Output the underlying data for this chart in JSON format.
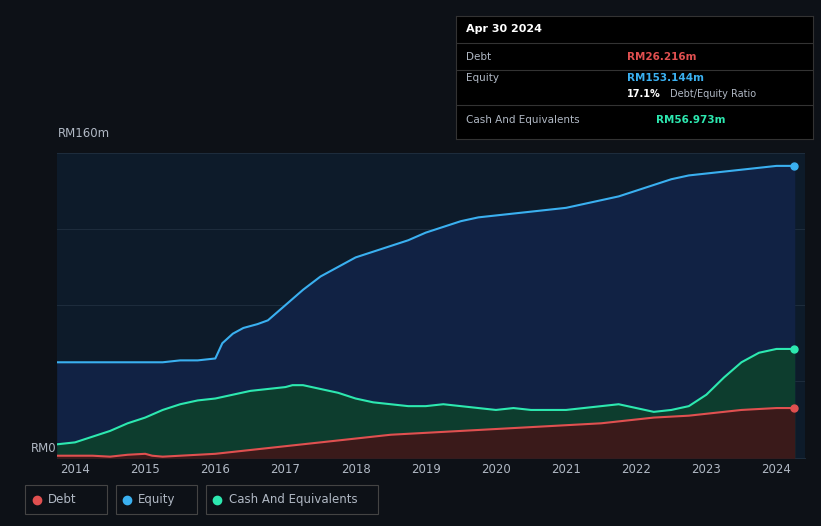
{
  "bg_color": "#0d1117",
  "plot_bg_color": "#0d1b2a",
  "colors": {
    "debt": "#e05050",
    "equity": "#3ab0f0",
    "cash": "#2de8b0",
    "equity_fill": "#112244",
    "cash_fill": "#0d3d2e",
    "debt_fill": "#3a1a1a",
    "grid": "#1e2d3d",
    "text": "#b0b8c4"
  },
  "y_label_top": "RM160m",
  "y_label_bottom": "RM0",
  "x_ticks": [
    "2014",
    "2015",
    "2016",
    "2017",
    "2018",
    "2019",
    "2020",
    "2021",
    "2022",
    "2023",
    "2024"
  ],
  "tooltip": {
    "date": "Apr 30 2024",
    "debt_label": "Debt",
    "debt_value": "RM26.216m",
    "equity_label": "Equity",
    "equity_value": "RM153.144m",
    "ratio_value": "17.1%",
    "ratio_label": "Debt/Equity Ratio",
    "cash_label": "Cash And Equivalents",
    "cash_value": "RM56.973m"
  },
  "equity_data": {
    "x": [
      2013.75,
      2014.0,
      2014.25,
      2014.5,
      2014.75,
      2015.0,
      2015.25,
      2015.5,
      2015.75,
      2016.0,
      2016.1,
      2016.25,
      2016.4,
      2016.6,
      2016.75,
      2017.0,
      2017.25,
      2017.5,
      2017.75,
      2018.0,
      2018.25,
      2018.5,
      2018.75,
      2019.0,
      2019.25,
      2019.5,
      2019.75,
      2020.0,
      2020.25,
      2020.5,
      2020.75,
      2021.0,
      2021.25,
      2021.5,
      2021.75,
      2022.0,
      2022.25,
      2022.5,
      2022.75,
      2023.0,
      2023.25,
      2023.5,
      2023.75,
      2024.0,
      2024.25
    ],
    "y": [
      50,
      50,
      50,
      50,
      50,
      50,
      50,
      51,
      51,
      52,
      60,
      65,
      68,
      70,
      72,
      80,
      88,
      95,
      100,
      105,
      108,
      111,
      114,
      118,
      121,
      124,
      126,
      127,
      128,
      129,
      130,
      131,
      133,
      135,
      137,
      140,
      143,
      146,
      148,
      149,
      150,
      151,
      152,
      153,
      153
    ]
  },
  "cash_data": {
    "x": [
      2013.75,
      2014.0,
      2014.25,
      2014.5,
      2014.75,
      2015.0,
      2015.25,
      2015.5,
      2015.75,
      2016.0,
      2016.25,
      2016.5,
      2016.75,
      2017.0,
      2017.1,
      2017.25,
      2017.5,
      2017.75,
      2018.0,
      2018.25,
      2018.5,
      2018.75,
      2019.0,
      2019.25,
      2019.5,
      2019.75,
      2020.0,
      2020.25,
      2020.5,
      2020.75,
      2021.0,
      2021.25,
      2021.5,
      2021.75,
      2022.0,
      2022.25,
      2022.5,
      2022.75,
      2023.0,
      2023.25,
      2023.5,
      2023.75,
      2024.0,
      2024.25
    ],
    "y": [
      7,
      8,
      11,
      14,
      18,
      21,
      25,
      28,
      30,
      31,
      33,
      35,
      36,
      37,
      38,
      38,
      36,
      34,
      31,
      29,
      28,
      27,
      27,
      28,
      27,
      26,
      25,
      26,
      25,
      25,
      25,
      26,
      27,
      28,
      26,
      24,
      25,
      27,
      33,
      42,
      50,
      55,
      57,
      57
    ]
  },
  "debt_data": {
    "x": [
      2013.75,
      2014.0,
      2014.25,
      2014.5,
      2014.75,
      2015.0,
      2015.1,
      2015.25,
      2015.5,
      2015.75,
      2016.0,
      2016.25,
      2016.5,
      2016.75,
      2017.0,
      2017.25,
      2017.5,
      2017.75,
      2018.0,
      2018.25,
      2018.5,
      2018.75,
      2019.0,
      2019.25,
      2019.5,
      2019.75,
      2020.0,
      2020.25,
      2020.5,
      2020.75,
      2021.0,
      2021.25,
      2021.5,
      2021.75,
      2022.0,
      2022.25,
      2022.5,
      2022.75,
      2023.0,
      2023.25,
      2023.5,
      2023.75,
      2024.0,
      2024.25
    ],
    "y": [
      1,
      1,
      1,
      0.5,
      1.5,
      2,
      1,
      0.5,
      1,
      1.5,
      2,
      3,
      4,
      5,
      6,
      7,
      8,
      9,
      10,
      11,
      12,
      12.5,
      13,
      13.5,
      14,
      14.5,
      15,
      15.5,
      16,
      16.5,
      17,
      17.5,
      18,
      19,
      20,
      21,
      21.5,
      22,
      23,
      24,
      25,
      25.5,
      26,
      26
    ]
  },
  "ylim": [
    0,
    160
  ],
  "xlim": [
    2013.75,
    2024.4
  ],
  "legend": [
    {
      "label": "Debt",
      "color": "#e05050"
    },
    {
      "label": "Equity",
      "color": "#3ab0f0"
    },
    {
      "label": "Cash And Equivalents",
      "color": "#2de8b0"
    }
  ]
}
